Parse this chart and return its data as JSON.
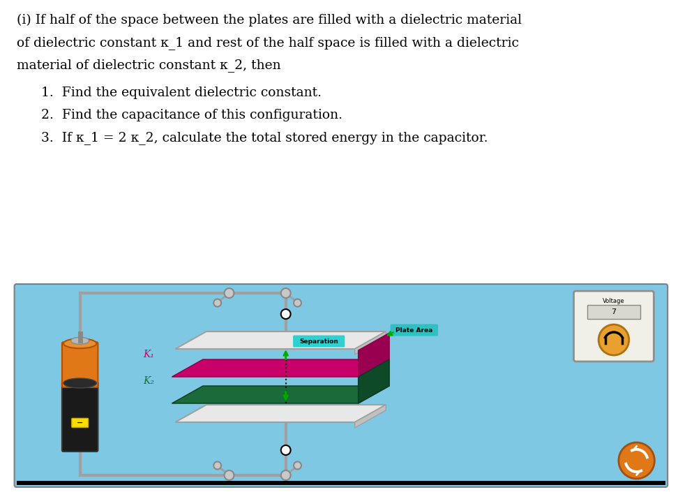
{
  "line1": "(i) If half of the space between the plates are filled with a dielectric material",
  "line2": "of dielectric constant κ_1 and rest of the half space is filled with a dielectric",
  "line3": "material of dielectric constant κ_2, then",
  "item1": "1.  Find the equivalent dielectric constant.",
  "item2": "2.  Find the capacitance of this configuration.",
  "item3": "3.  If κ_1 = 2 κ_2, calculate the total stored energy in the capacitor.",
  "bg_color": "#7EC8E3",
  "white_bg": "#ffffff",
  "k1_color": "#C8006A",
  "k2_color": "#1B6B3A",
  "k1_side_color": "#9A0050",
  "k2_side_color": "#0F4A28",
  "wire_color": "#A0A0A0",
  "plate_color": "#E8E8E8",
  "plate_side_color": "#C0C0C0",
  "battery_orange": "#E07818",
  "battery_black": "#1A1A1A",
  "battery_gray": "#888888",
  "sep_cyan": "#30D0D0",
  "plate_area_cyan": "#30C0C0",
  "k1_label": "K₁",
  "k2_label": "K₂",
  "separation_label": "Separation",
  "plate_area_label": "Plate Area",
  "voltage_label": "Voltage",
  "voltage_val": "7"
}
